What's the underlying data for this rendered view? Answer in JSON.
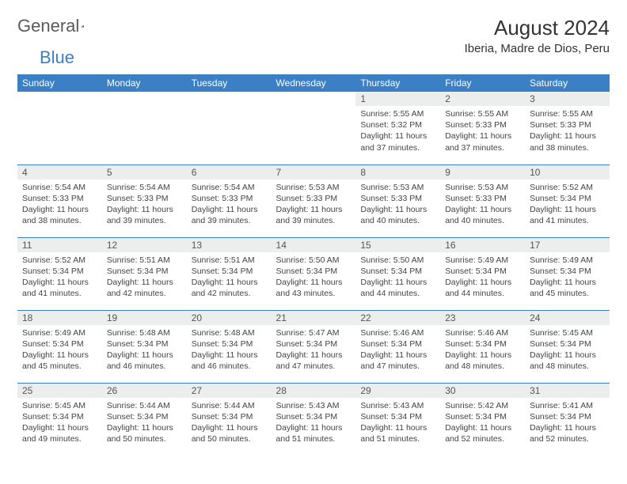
{
  "brand": {
    "part1": "General",
    "part2": "Blue"
  },
  "title": "August 2024",
  "subtitle": "Iberia, Madre de Dios, Peru",
  "header_row_color": "#3b7fc4",
  "daynum_bg": "#eceded",
  "border_color": "#3b7fc4",
  "day_headers": [
    "Sunday",
    "Monday",
    "Tuesday",
    "Wednesday",
    "Thursday",
    "Friday",
    "Saturday"
  ],
  "weeks": [
    [
      null,
      null,
      null,
      null,
      {
        "n": "1",
        "sr": "Sunrise: 5:55 AM",
        "ss": "Sunset: 5:32 PM",
        "dl1": "Daylight: 11 hours",
        "dl2": "and 37 minutes."
      },
      {
        "n": "2",
        "sr": "Sunrise: 5:55 AM",
        "ss": "Sunset: 5:33 PM",
        "dl1": "Daylight: 11 hours",
        "dl2": "and 37 minutes."
      },
      {
        "n": "3",
        "sr": "Sunrise: 5:55 AM",
        "ss": "Sunset: 5:33 PM",
        "dl1": "Daylight: 11 hours",
        "dl2": "and 38 minutes."
      }
    ],
    [
      {
        "n": "4",
        "sr": "Sunrise: 5:54 AM",
        "ss": "Sunset: 5:33 PM",
        "dl1": "Daylight: 11 hours",
        "dl2": "and 38 minutes."
      },
      {
        "n": "5",
        "sr": "Sunrise: 5:54 AM",
        "ss": "Sunset: 5:33 PM",
        "dl1": "Daylight: 11 hours",
        "dl2": "and 39 minutes."
      },
      {
        "n": "6",
        "sr": "Sunrise: 5:54 AM",
        "ss": "Sunset: 5:33 PM",
        "dl1": "Daylight: 11 hours",
        "dl2": "and 39 minutes."
      },
      {
        "n": "7",
        "sr": "Sunrise: 5:53 AM",
        "ss": "Sunset: 5:33 PM",
        "dl1": "Daylight: 11 hours",
        "dl2": "and 39 minutes."
      },
      {
        "n": "8",
        "sr": "Sunrise: 5:53 AM",
        "ss": "Sunset: 5:33 PM",
        "dl1": "Daylight: 11 hours",
        "dl2": "and 40 minutes."
      },
      {
        "n": "9",
        "sr": "Sunrise: 5:53 AM",
        "ss": "Sunset: 5:33 PM",
        "dl1": "Daylight: 11 hours",
        "dl2": "and 40 minutes."
      },
      {
        "n": "10",
        "sr": "Sunrise: 5:52 AM",
        "ss": "Sunset: 5:34 PM",
        "dl1": "Daylight: 11 hours",
        "dl2": "and 41 minutes."
      }
    ],
    [
      {
        "n": "11",
        "sr": "Sunrise: 5:52 AM",
        "ss": "Sunset: 5:34 PM",
        "dl1": "Daylight: 11 hours",
        "dl2": "and 41 minutes."
      },
      {
        "n": "12",
        "sr": "Sunrise: 5:51 AM",
        "ss": "Sunset: 5:34 PM",
        "dl1": "Daylight: 11 hours",
        "dl2": "and 42 minutes."
      },
      {
        "n": "13",
        "sr": "Sunrise: 5:51 AM",
        "ss": "Sunset: 5:34 PM",
        "dl1": "Daylight: 11 hours",
        "dl2": "and 42 minutes."
      },
      {
        "n": "14",
        "sr": "Sunrise: 5:50 AM",
        "ss": "Sunset: 5:34 PM",
        "dl1": "Daylight: 11 hours",
        "dl2": "and 43 minutes."
      },
      {
        "n": "15",
        "sr": "Sunrise: 5:50 AM",
        "ss": "Sunset: 5:34 PM",
        "dl1": "Daylight: 11 hours",
        "dl2": "and 44 minutes."
      },
      {
        "n": "16",
        "sr": "Sunrise: 5:49 AM",
        "ss": "Sunset: 5:34 PM",
        "dl1": "Daylight: 11 hours",
        "dl2": "and 44 minutes."
      },
      {
        "n": "17",
        "sr": "Sunrise: 5:49 AM",
        "ss": "Sunset: 5:34 PM",
        "dl1": "Daylight: 11 hours",
        "dl2": "and 45 minutes."
      }
    ],
    [
      {
        "n": "18",
        "sr": "Sunrise: 5:49 AM",
        "ss": "Sunset: 5:34 PM",
        "dl1": "Daylight: 11 hours",
        "dl2": "and 45 minutes."
      },
      {
        "n": "19",
        "sr": "Sunrise: 5:48 AM",
        "ss": "Sunset: 5:34 PM",
        "dl1": "Daylight: 11 hours",
        "dl2": "and 46 minutes."
      },
      {
        "n": "20",
        "sr": "Sunrise: 5:48 AM",
        "ss": "Sunset: 5:34 PM",
        "dl1": "Daylight: 11 hours",
        "dl2": "and 46 minutes."
      },
      {
        "n": "21",
        "sr": "Sunrise: 5:47 AM",
        "ss": "Sunset: 5:34 PM",
        "dl1": "Daylight: 11 hours",
        "dl2": "and 47 minutes."
      },
      {
        "n": "22",
        "sr": "Sunrise: 5:46 AM",
        "ss": "Sunset: 5:34 PM",
        "dl1": "Daylight: 11 hours",
        "dl2": "and 47 minutes."
      },
      {
        "n": "23",
        "sr": "Sunrise: 5:46 AM",
        "ss": "Sunset: 5:34 PM",
        "dl1": "Daylight: 11 hours",
        "dl2": "and 48 minutes."
      },
      {
        "n": "24",
        "sr": "Sunrise: 5:45 AM",
        "ss": "Sunset: 5:34 PM",
        "dl1": "Daylight: 11 hours",
        "dl2": "and 48 minutes."
      }
    ],
    [
      {
        "n": "25",
        "sr": "Sunrise: 5:45 AM",
        "ss": "Sunset: 5:34 PM",
        "dl1": "Daylight: 11 hours",
        "dl2": "and 49 minutes."
      },
      {
        "n": "26",
        "sr": "Sunrise: 5:44 AM",
        "ss": "Sunset: 5:34 PM",
        "dl1": "Daylight: 11 hours",
        "dl2": "and 50 minutes."
      },
      {
        "n": "27",
        "sr": "Sunrise: 5:44 AM",
        "ss": "Sunset: 5:34 PM",
        "dl1": "Daylight: 11 hours",
        "dl2": "and 50 minutes."
      },
      {
        "n": "28",
        "sr": "Sunrise: 5:43 AM",
        "ss": "Sunset: 5:34 PM",
        "dl1": "Daylight: 11 hours",
        "dl2": "and 51 minutes."
      },
      {
        "n": "29",
        "sr": "Sunrise: 5:43 AM",
        "ss": "Sunset: 5:34 PM",
        "dl1": "Daylight: 11 hours",
        "dl2": "and 51 minutes."
      },
      {
        "n": "30",
        "sr": "Sunrise: 5:42 AM",
        "ss": "Sunset: 5:34 PM",
        "dl1": "Daylight: 11 hours",
        "dl2": "and 52 minutes."
      },
      {
        "n": "31",
        "sr": "Sunrise: 5:41 AM",
        "ss": "Sunset: 5:34 PM",
        "dl1": "Daylight: 11 hours",
        "dl2": "and 52 minutes."
      }
    ]
  ]
}
